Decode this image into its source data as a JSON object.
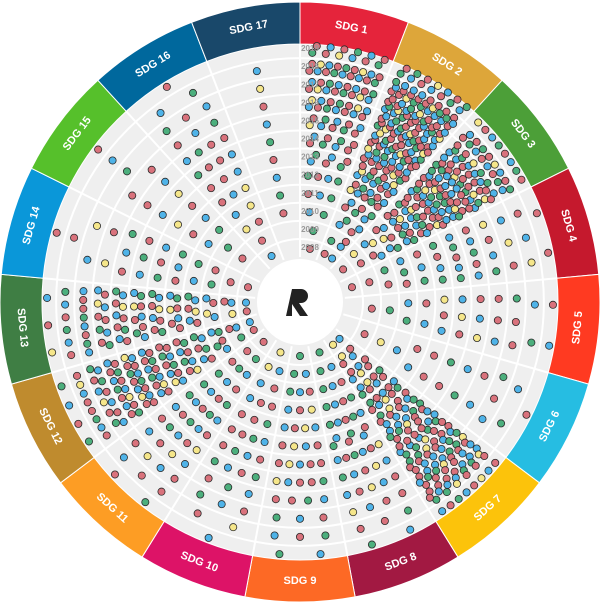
{
  "chart_data": {
    "type": "radial-dot",
    "sectors": [
      "SDG 1",
      "SDG 2",
      "SDG 3",
      "SDG 4",
      "SDG 5",
      "SDG 6",
      "SDG 7",
      "SDG 8",
      "SDG 9",
      "SDG 10",
      "SDG 11",
      "SDG 12",
      "SDG 13",
      "SDG 14",
      "SDG 15",
      "SDG 16",
      "SDG 17"
    ],
    "sector_colors": [
      "#e5243b",
      "#dda63a",
      "#4c9f38",
      "#c5192d",
      "#ff3a21",
      "#26bde2",
      "#fcc30b",
      "#a21942",
      "#fd6925",
      "#dd1367",
      "#fd9d24",
      "#bf8b2e",
      "#3f7e44",
      "#0a97d9",
      "#56c02b",
      "#00689d",
      "#19486a"
    ],
    "rlim": [
      2007.5,
      2019.5
    ],
    "rticks": [
      2008,
      2009,
      2010,
      2011,
      2012,
      2013,
      2014,
      2015,
      2016,
      2017,
      2018,
      2019
    ],
    "dot_colors": [
      "#d9727c",
      "#4fb3e8",
      "#4caf7d",
      "#f5e68a"
    ],
    "counts": [
      [
        1,
        1,
        2,
        3,
        4,
        6,
        8,
        10,
        14,
        16,
        18,
        12
      ],
      [
        2,
        3,
        4,
        6,
        10,
        14,
        18,
        22,
        26,
        28,
        26,
        14
      ],
      [
        1,
        2,
        4,
        6,
        10,
        14,
        18,
        20,
        22,
        20,
        16,
        8
      ],
      [
        1,
        1,
        2,
        3,
        3,
        4,
        5,
        5,
        4,
        3,
        3,
        2
      ],
      [
        0,
        1,
        1,
        2,
        2,
        3,
        3,
        3,
        3,
        3,
        2,
        2
      ],
      [
        0,
        1,
        1,
        1,
        2,
        2,
        2,
        2,
        2,
        3,
        2,
        1
      ],
      [
        2,
        4,
        6,
        8,
        10,
        12,
        14,
        16,
        18,
        20,
        20,
        8
      ],
      [
        1,
        2,
        3,
        4,
        5,
        6,
        6,
        5,
        5,
        4,
        3,
        2
      ],
      [
        1,
        2,
        3,
        3,
        4,
        4,
        5,
        5,
        4,
        3,
        3,
        2
      ],
      [
        1,
        2,
        2,
        3,
        3,
        4,
        4,
        4,
        3,
        3,
        2,
        1
      ],
      [
        1,
        2,
        3,
        3,
        4,
        5,
        5,
        5,
        4,
        4,
        3,
        2
      ],
      [
        2,
        3,
        5,
        6,
        8,
        10,
        12,
        14,
        14,
        12,
        8,
        4
      ],
      [
        2,
        3,
        4,
        6,
        7,
        8,
        9,
        10,
        10,
        8,
        6,
        3
      ],
      [
        1,
        1,
        2,
        2,
        3,
        3,
        3,
        3,
        2,
        2,
        1,
        1
      ],
      [
        0,
        1,
        1,
        2,
        2,
        2,
        2,
        2,
        2,
        1,
        1,
        1
      ],
      [
        1,
        1,
        2,
        2,
        3,
        3,
        4,
        4,
        3,
        3,
        2,
        1
      ],
      [
        0,
        0,
        1,
        1,
        1,
        1,
        1,
        1,
        1,
        1,
        1,
        0
      ]
    ]
  }
}
